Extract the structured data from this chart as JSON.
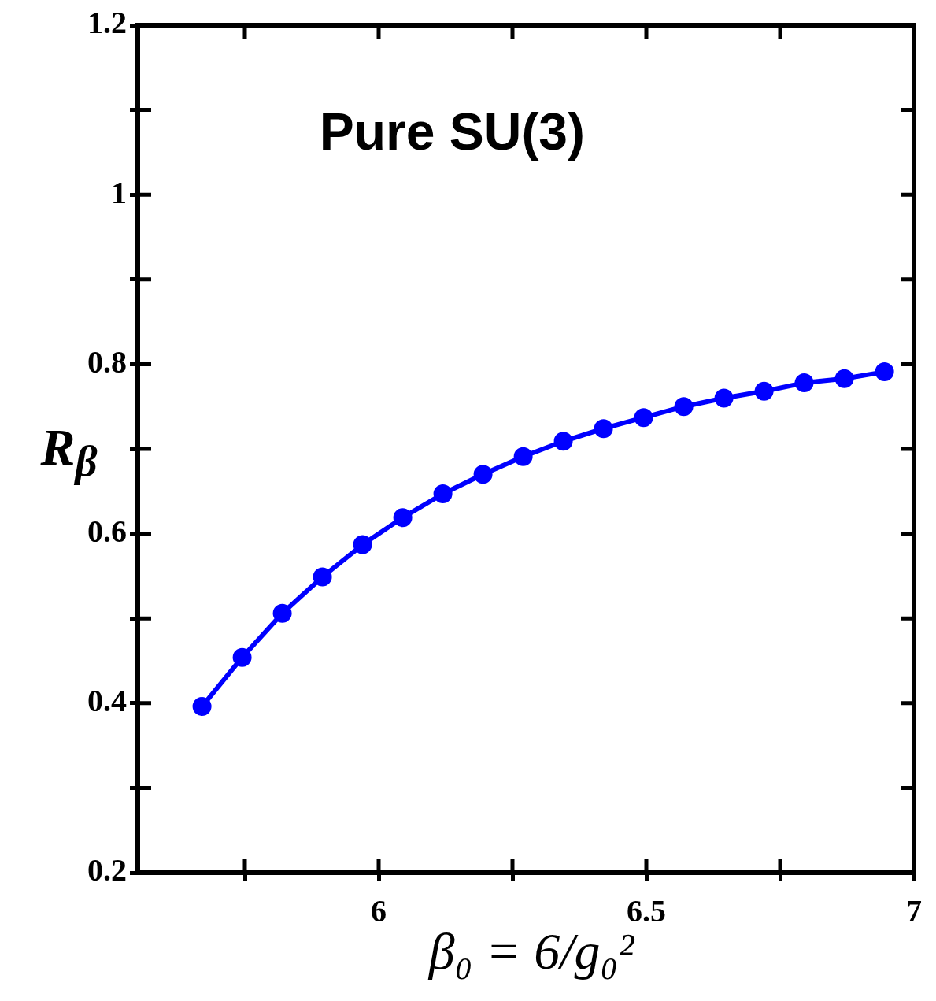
{
  "chart_data": {
    "type": "line",
    "xlabel": "β₀ = 6/g₀²",
    "ylabel": "R$_{β}$",
    "annotations": [
      "Pure SU(3)"
    ],
    "x": [
      5.67,
      5.745,
      5.82,
      5.895,
      5.97,
      6.045,
      6.12,
      6.195,
      6.27,
      6.345,
      6.42,
      6.495,
      6.57,
      6.645,
      6.72,
      6.795,
      6.87,
      6.945
    ],
    "series": [
      {
        "color": "#0000ff",
        "values": [
          0.396,
          0.454,
          0.506,
          0.549,
          0.587,
          0.619,
          0.647,
          0.67,
          0.691,
          0.709,
          0.724,
          0.737,
          0.75,
          0.76,
          0.768,
          0.778,
          0.783,
          0.791
        ]
      }
    ],
    "xlim": [
      5.55,
      7
    ],
    "xticks": [
      {
        "value": 5.75,
        "label": null
      },
      6,
      {
        "value": 6.25,
        "label": null
      },
      6.5,
      {
        "value": 6.75,
        "label": null
      },
      7
    ],
    "ylim": [
      0.2,
      1.2
    ],
    "yticks": [
      0.2,
      {
        "value": 0.3,
        "label": null
      },
      0.4,
      {
        "value": 0.5,
        "label": null
      },
      0.6,
      {
        "value": 0.7,
        "label": null
      },
      0.8,
      {
        "value": 0.9,
        "label": null
      },
      1,
      {
        "value": 1.1,
        "label": null
      },
      1.2
    ],
    "marker": "circle",
    "line_style": "solid"
  }
}
